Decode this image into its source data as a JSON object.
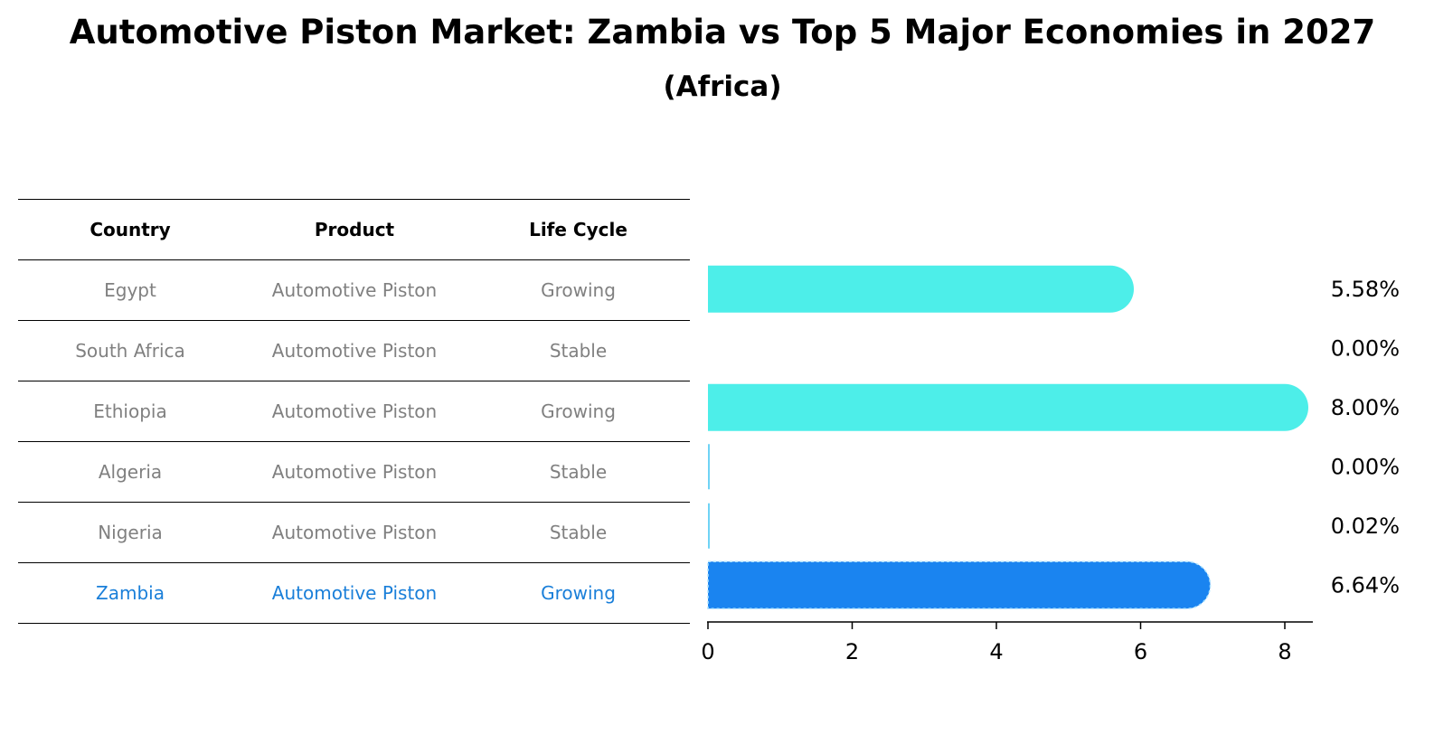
{
  "chart_data": {
    "type": "bar",
    "orientation": "horizontal",
    "title": "Automotive Piston Market: Zambia vs Top 5 Major Economies in 2027",
    "subtitle": "(Africa)",
    "table_headers": [
      "Country",
      "Product",
      "Life Cycle"
    ],
    "rows": [
      {
        "country": "Egypt",
        "product": "Automotive Piston",
        "life_cycle": "Growing",
        "value": 5.58,
        "label": "5.58%",
        "highlight": false
      },
      {
        "country": "South Africa",
        "product": "Automotive Piston",
        "life_cycle": "Stable",
        "value": 0.0,
        "label": "0.00%",
        "highlight": false
      },
      {
        "country": "Ethiopia",
        "product": "Automotive Piston",
        "life_cycle": "Growing",
        "value": 8.0,
        "label": "8.00%",
        "highlight": false
      },
      {
        "country": "Algeria",
        "product": "Automotive Piston",
        "life_cycle": "Stable",
        "value": 0.0,
        "label": "0.00%",
        "highlight": false
      },
      {
        "country": "Nigeria",
        "product": "Automotive Piston",
        "life_cycle": "Stable",
        "value": 0.02,
        "label": "0.02%",
        "highlight": false
      },
      {
        "country": "Zambia",
        "product": "Automotive Piston",
        "life_cycle": "Growing",
        "value": 6.64,
        "label": "6.64%",
        "highlight": true
      }
    ],
    "xlim": [
      0,
      8.4
    ],
    "xticks": [
      0,
      2,
      4,
      6,
      8
    ],
    "colors": {
      "growing": "#4deee9",
      "stable": "#6fd3f5",
      "highlight": "#1a84f0"
    }
  }
}
